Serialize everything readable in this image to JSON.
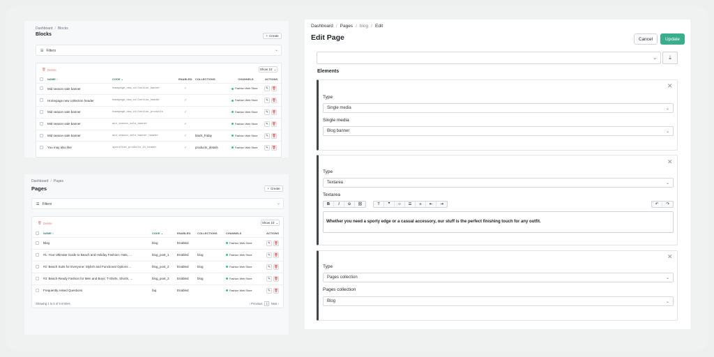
{
  "blocks": {
    "breadcrumb": [
      "Dashboard",
      "Blocks"
    ],
    "title": "Blocks",
    "create_label": "Create",
    "filters_label": "Filters",
    "delete_label": "Delete",
    "show_label": "Show 10",
    "columns": [
      "NAME",
      "CODE",
      "ENABLED",
      "COLLECTIONS",
      "CHANNELS",
      "ACTIONS"
    ],
    "rows": [
      {
        "name": "Mid season sale banner",
        "code": "homepage_new_collection_banner",
        "collections": "",
        "channel": "Fashion Web Store"
      },
      {
        "name": "Homepage new collection header",
        "code": "homepage_new_collection_header",
        "collections": "",
        "channel": "Fashion Web Store"
      },
      {
        "name": "Mid season sale banner",
        "code": "homepage_new_collection_products",
        "collections": "",
        "channel": "Fashion Web Store"
      },
      {
        "name": "Mid season sale banner",
        "code": "mid_season_sale_banner",
        "collections": "",
        "channel": "Fashion Web Store"
      },
      {
        "name": "Mid season sale banner",
        "code": "mid_season_sale_banner_header",
        "collections": "black_friday",
        "channel": "Fashion Web Store"
      },
      {
        "name": "You may also like",
        "code": "specified_products_in_header",
        "collections": "products_details",
        "channel": "Fashion Web Store"
      }
    ]
  },
  "pages": {
    "breadcrumb": [
      "Dashboard",
      "Pages"
    ],
    "title": "Pages",
    "create_label": "Create",
    "filters_label": "Filters",
    "delete_label": "Delete",
    "show_label": "Show 10",
    "columns": [
      "NAME",
      "CODE",
      "ENABLED",
      "COLLECTIONS",
      "CHANNELS",
      "ACTIONS"
    ],
    "rows": [
      {
        "name": "Blog",
        "code": "blog",
        "enabled": "Enabled",
        "collections": "",
        "channel": "Fashion Web Store"
      },
      {
        "name": "#1: Your Ultimate Guide to Beach and Holiday Fashion: Hats, ...",
        "code": "blog_post_1",
        "enabled": "Enabled",
        "collections": "blog",
        "channel": "Fashion Web Store"
      },
      {
        "name": "#2: Beach Suits for Everyone: Stylish and Functional Options ...",
        "code": "blog_post_2",
        "enabled": "Enabled",
        "collections": "blog",
        "channel": "Fashion Web Store"
      },
      {
        "name": "#3: Beach-Ready Fashion for Men and Boys: T-Shirts, Shorts, ...",
        "code": "blog_post_3",
        "enabled": "Enabled",
        "collections": "blog",
        "channel": "Fashion Web Store"
      },
      {
        "name": "Frequently Asked Questions",
        "code": "faq",
        "enabled": "Enabled",
        "collections": "",
        "channel": "Fashion Web Store"
      }
    ],
    "footer": "Showing 1 to 5 of 5 entries",
    "prev_label": "Previous",
    "page_num": "1",
    "next_label": "Next"
  },
  "edit": {
    "breadcrumb": [
      "Dashboard",
      "Pages",
      "blog",
      "Edit"
    ],
    "title": "Edit Page",
    "cancel_label": "Cancel",
    "update_label": "Update",
    "elements_label": "Elements",
    "el1": {
      "type_label": "Type",
      "type_value": "Single media",
      "field_label": "Single media",
      "field_value": "Blog banner"
    },
    "el2": {
      "type_label": "Type",
      "type_value": "Textarea",
      "field_label": "Textarea",
      "content": "Whether you need a sporty edge or a casual accessory, our stuff is the perfect finishing touch for any outfit."
    },
    "el3": {
      "type_label": "Type",
      "type_value": "Pages collection",
      "field_label": "Pages collection",
      "field_value": "Blog"
    }
  },
  "colors": {
    "accent": "#3aae8c",
    "danger": "#d33b3b",
    "status": "#3bbf7a"
  }
}
